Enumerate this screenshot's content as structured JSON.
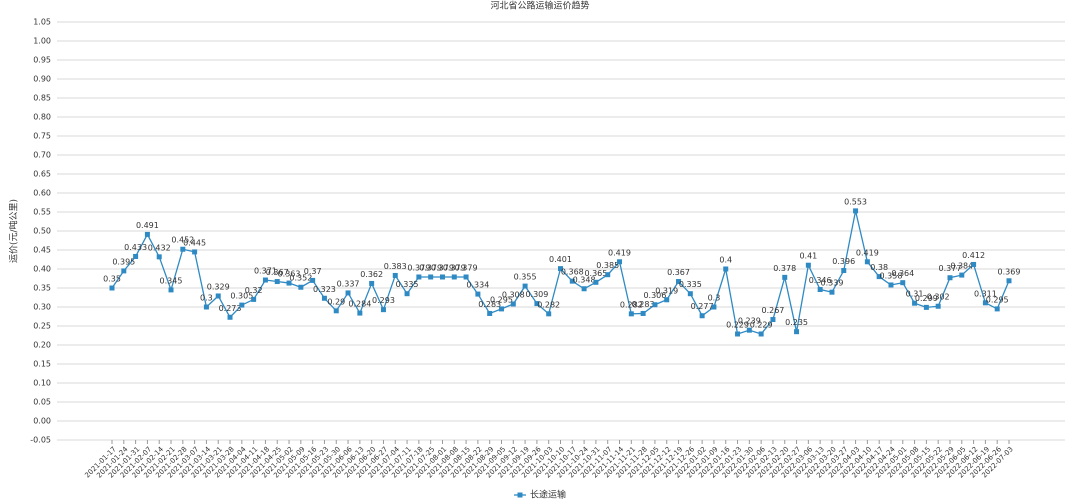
{
  "chart_data": {
    "type": "line",
    "title": "河北省公路运输运价趋势",
    "y_label": "运价(元/吨公里)",
    "categories": [
      "2021-01-17",
      "2021-01-24",
      "2021-01-31",
      "2021-02-07",
      "2021-02-14",
      "2021-02-21",
      "2021-02-28",
      "2021-03-07",
      "2021-03-14",
      "2021-03-21",
      "2021-03-28",
      "2021-04-04",
      "2021-04-11",
      "2021-04-18",
      "2021-04-25",
      "2021-05-02",
      "2021-05-09",
      "2021-05-16",
      "2021-05-23",
      "2021-05-30",
      "2021-06-06",
      "2021-06-13",
      "2021-06-20",
      "2021-06-27",
      "2021-07-04",
      "2021-07-11",
      "2021-07-18",
      "2021-07-25",
      "2021-08-01",
      "2021-08-08",
      "2021-08-15",
      "2021-08-22",
      "2021-08-29",
      "2021-09-05",
      "2021-09-12",
      "2021-09-19",
      "2021-09-26",
      "2021-10-03",
      "2021-10-10",
      "2021-10-17",
      "2021-10-24",
      "2021-10-31",
      "2021-11-07",
      "2021-11-14",
      "2021-11-21",
      "2021-11-28",
      "2021-12-05",
      "2021-12-12",
      "2021-12-19",
      "2021-12-26",
      "2022-01-02",
      "2022-01-09",
      "2022-01-16",
      "2022-01-23",
      "2022-01-30",
      "2022-02-06",
      "2022-02-13",
      "2022-02-20",
      "2022-02-27",
      "2022-03-06",
      "2022-03-13",
      "2022-03-20",
      "2022-03-27",
      "2022-04-03",
      "2022-04-10",
      "2022-04-17",
      "2022-04-24",
      "2022-05-01",
      "2022-05-08",
      "2022-05-15",
      "2022-05-22",
      "2022-05-29",
      "2022-06-05",
      "2022-06-12",
      "2022-06-19",
      "2022-06-26",
      "2022-07-03"
    ],
    "series": [
      {
        "name": "长途运输",
        "color": "#2f8ac4",
        "values": [
          0.35,
          0.395,
          0.433,
          0.491,
          0.432,
          0.345,
          0.452,
          0.445,
          0.3,
          0.329,
          0.273,
          0.305,
          0.32,
          0.371,
          0.367,
          0.363,
          0.352,
          0.37,
          0.323,
          0.29,
          0.337,
          0.284,
          0.362,
          0.293,
          0.383,
          0.335,
          0.379,
          0.379,
          0.379,
          0.379,
          0.379,
          0.334,
          0.283,
          0.295,
          0.308,
          0.355,
          0.309,
          0.282,
          0.401,
          0.368,
          0.348,
          0.365,
          0.385,
          0.419,
          0.282,
          0.283,
          0.306,
          0.319,
          0.367,
          0.335,
          0.277,
          0.3,
          0.4,
          0.229,
          0.239,
          0.229,
          0.267,
          0.378,
          0.235,
          0.41,
          0.346,
          0.339,
          0.396,
          0.553,
          0.419,
          0.38,
          0.358,
          0.364,
          0.31,
          0.299,
          0.302,
          0.377,
          0.384,
          0.412,
          0.311,
          0.295,
          0.369
        ]
      }
    ],
    "ylim": [
      -0.05,
      1.05
    ],
    "yticks": [
      {
        "value": -0.05,
        "label": "-0.05"
      },
      {
        "value": 0,
        "label": "0.00"
      },
      {
        "value": 0.05,
        "label": "0.05"
      },
      {
        "value": 0.1,
        "label": "0.10"
      },
      {
        "value": 0.15,
        "label": "0.15"
      },
      {
        "value": 0.2,
        "label": "0.20"
      },
      {
        "value": 0.25,
        "label": "0.25"
      },
      {
        "value": 0.3,
        "label": "0.30"
      },
      {
        "value": 0.35,
        "label": "0.35"
      },
      {
        "value": 0.4,
        "label": "0.40"
      },
      {
        "value": 0.45,
        "label": "0.45"
      },
      {
        "value": 0.5,
        "label": "0.50"
      },
      {
        "value": 0.55,
        "label": "0.55"
      },
      {
        "value": 0.6,
        "label": "0.60"
      },
      {
        "value": 0.65,
        "label": "0.65"
      },
      {
        "value": 0.7,
        "label": "0.70"
      },
      {
        "value": 0.75,
        "label": "0.75"
      },
      {
        "value": 0.8,
        "label": "0.80"
      },
      {
        "value": 0.85,
        "label": "0.85"
      },
      {
        "value": 0.9,
        "label": "0.90"
      },
      {
        "value": 0.95,
        "label": "0.95"
      },
      {
        "value": 1,
        "label": "1.00"
      },
      {
        "value": 1.05,
        "label": "1.05"
      }
    ],
    "grid": true
  }
}
